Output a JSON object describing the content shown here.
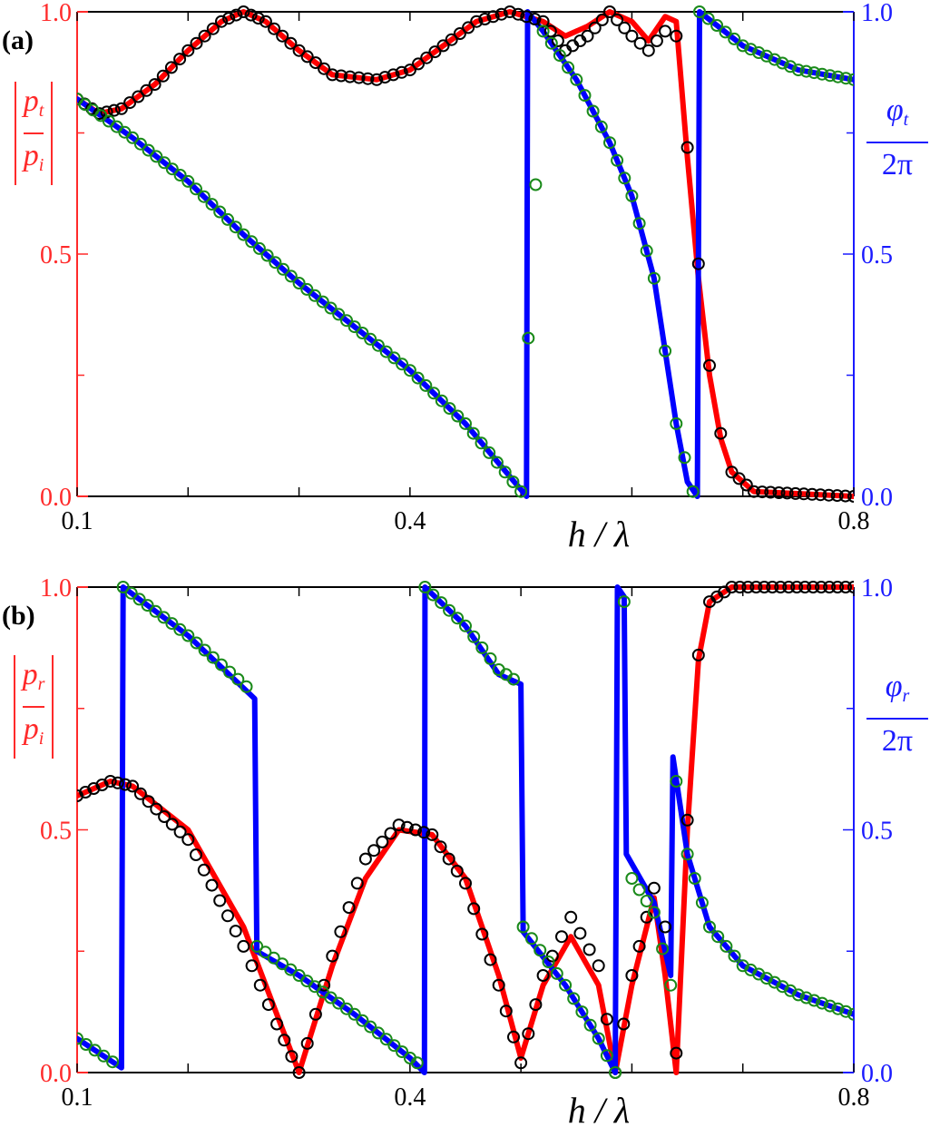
{
  "chart_data": [
    {
      "type": "line",
      "panel_label": "(a)",
      "xlabel": "h / λ",
      "ylabel_left": "|p_t / p_i|",
      "ylabel_right": "φ_t / 2π",
      "xlim": [
        0.1,
        0.8
      ],
      "ylim_left": [
        0.0,
        1.0
      ],
      "ylim_right": [
        0.0,
        1.0
      ],
      "x_ticks": [
        "0.1",
        "0.4",
        "0.8"
      ],
      "y_ticks_left": [
        "0.0",
        "0.5",
        "1.0"
      ],
      "y_ticks_right": [
        "0.0",
        "0.5",
        "1.0"
      ],
      "grid": false,
      "series": [
        {
          "name": "|p_t/p_i| (theory, red line)",
          "axis": "left",
          "color": "#ff0000",
          "style": "line",
          "x": [
            0.1,
            0.12,
            0.14,
            0.17,
            0.2,
            0.23,
            0.25,
            0.27,
            0.3,
            0.33,
            0.37,
            0.4,
            0.43,
            0.46,
            0.49,
            0.52,
            0.54,
            0.56,
            0.58,
            0.6,
            0.615,
            0.63,
            0.64,
            0.65,
            0.66,
            0.67,
            0.68,
            0.69,
            0.71,
            0.8
          ],
          "y": [
            0.82,
            0.79,
            0.8,
            0.85,
            0.92,
            0.98,
            1.0,
            0.98,
            0.92,
            0.87,
            0.86,
            0.88,
            0.93,
            0.98,
            1.0,
            0.98,
            0.95,
            0.97,
            1.0,
            0.98,
            0.94,
            0.99,
            0.98,
            0.7,
            0.45,
            0.25,
            0.12,
            0.05,
            0.01,
            0.0
          ]
        },
        {
          "name": "|p_t/p_i| (simulation, black circles)",
          "axis": "left",
          "color": "#000000",
          "style": "open-circle",
          "x": [
            0.1,
            0.12,
            0.14,
            0.17,
            0.2,
            0.23,
            0.25,
            0.27,
            0.3,
            0.33,
            0.37,
            0.4,
            0.43,
            0.46,
            0.49,
            0.52,
            0.54,
            0.56,
            0.58,
            0.6,
            0.615,
            0.63,
            0.64,
            0.65,
            0.66,
            0.67,
            0.68,
            0.69,
            0.71,
            0.8
          ],
          "y": [
            0.82,
            0.79,
            0.8,
            0.85,
            0.92,
            0.98,
            1.0,
            0.98,
            0.92,
            0.87,
            0.86,
            0.88,
            0.93,
            0.98,
            1.0,
            0.98,
            0.92,
            0.95,
            1.0,
            0.95,
            0.92,
            0.96,
            0.95,
            0.72,
            0.48,
            0.27,
            0.13,
            0.05,
            0.01,
            0.0
          ]
        },
        {
          "name": "φ_t/2π (theory, blue line)",
          "axis": "right",
          "color": "#0000ff",
          "style": "line",
          "x": [
            0.1,
            0.15,
            0.2,
            0.25,
            0.3,
            0.35,
            0.4,
            0.45,
            0.505,
            0.506,
            0.52,
            0.55,
            0.58,
            0.6,
            0.62,
            0.63,
            0.64,
            0.65,
            0.659,
            0.661,
            0.7,
            0.75,
            0.8
          ],
          "y": [
            0.82,
            0.74,
            0.65,
            0.54,
            0.44,
            0.35,
            0.26,
            0.15,
            0.0,
            1.0,
            0.96,
            0.86,
            0.73,
            0.62,
            0.45,
            0.3,
            0.15,
            0.03,
            0.0,
            1.0,
            0.93,
            0.88,
            0.86
          ]
        },
        {
          "name": "φ_t/2π (simulation, green circles)",
          "axis": "right",
          "color": "#1a8a1a",
          "style": "open-circle",
          "x": [
            0.1,
            0.15,
            0.2,
            0.25,
            0.3,
            0.35,
            0.4,
            0.45,
            0.5,
            0.52,
            0.55,
            0.58,
            0.6,
            0.62,
            0.63,
            0.64,
            0.655,
            0.661,
            0.7,
            0.75,
            0.8
          ],
          "y": [
            0.82,
            0.74,
            0.65,
            0.54,
            0.44,
            0.35,
            0.26,
            0.15,
            0.01,
            0.96,
            0.86,
            0.73,
            0.62,
            0.45,
            0.3,
            0.15,
            0.01,
            1.0,
            0.93,
            0.88,
            0.86
          ]
        }
      ]
    },
    {
      "type": "line",
      "panel_label": "(b)",
      "xlabel": "h / λ",
      "ylabel_left": "|p_r / p_i|",
      "ylabel_right": "φ_r / 2π",
      "xlim": [
        0.1,
        0.8
      ],
      "ylim_left": [
        0.0,
        1.0
      ],
      "ylim_right": [
        0.0,
        1.0
      ],
      "x_ticks": [
        "0.1",
        "0.4",
        "0.8"
      ],
      "y_ticks_left": [
        "0.0",
        "0.5",
        "1.0"
      ],
      "y_ticks_right": [
        "0.0",
        "0.5",
        "1.0"
      ],
      "grid": false,
      "series": [
        {
          "name": "|p_r/p_i| (theory, red line)",
          "axis": "left",
          "color": "#ff0000",
          "style": "line",
          "x": [
            0.1,
            0.13,
            0.15,
            0.2,
            0.25,
            0.28,
            0.3,
            0.33,
            0.36,
            0.39,
            0.42,
            0.45,
            0.48,
            0.5,
            0.52,
            0.545,
            0.57,
            0.585,
            0.6,
            0.62,
            0.63,
            0.64,
            0.65,
            0.66,
            0.67,
            0.69,
            0.8
          ],
          "y": [
            0.57,
            0.6,
            0.59,
            0.5,
            0.3,
            0.12,
            0.0,
            0.22,
            0.4,
            0.5,
            0.49,
            0.4,
            0.2,
            0.03,
            0.18,
            0.28,
            0.18,
            0.0,
            0.18,
            0.36,
            0.2,
            0.0,
            0.5,
            0.85,
            0.97,
            1.0,
            1.0
          ]
        },
        {
          "name": "|p_r/p_i| (simulation, black circles)",
          "axis": "left",
          "color": "#000000",
          "style": "open-circle",
          "x": [
            0.1,
            0.13,
            0.15,
            0.2,
            0.25,
            0.28,
            0.3,
            0.33,
            0.36,
            0.39,
            0.42,
            0.45,
            0.48,
            0.5,
            0.52,
            0.545,
            0.57,
            0.585,
            0.6,
            0.62,
            0.63,
            0.64,
            0.65,
            0.66,
            0.67,
            0.69,
            0.8
          ],
          "y": [
            0.57,
            0.6,
            0.59,
            0.48,
            0.26,
            0.1,
            0.0,
            0.24,
            0.44,
            0.51,
            0.49,
            0.39,
            0.18,
            0.02,
            0.2,
            0.32,
            0.22,
            0.0,
            0.2,
            0.38,
            0.3,
            0.04,
            0.52,
            0.86,
            0.97,
            1.0,
            1.0
          ]
        },
        {
          "name": "φ_r/2π (theory, blue line)",
          "axis": "right",
          "color": "#0000ff",
          "style": "line",
          "x": [
            0.1,
            0.14,
            0.1415,
            0.2,
            0.26,
            0.262,
            0.3,
            0.35,
            0.4,
            0.413,
            0.4135,
            0.45,
            0.48,
            0.5,
            0.502,
            0.54,
            0.57,
            0.585,
            0.587,
            0.593,
            0.595,
            0.62,
            0.635,
            0.637,
            0.65,
            0.67,
            0.7,
            0.75,
            0.8
          ],
          "y": [
            0.07,
            0.01,
            1.0,
            0.9,
            0.77,
            0.25,
            0.2,
            0.12,
            0.03,
            0.0,
            1.0,
            0.92,
            0.82,
            0.8,
            0.29,
            0.18,
            0.07,
            0.0,
            1.0,
            0.98,
            0.45,
            0.35,
            0.2,
            0.65,
            0.45,
            0.3,
            0.22,
            0.16,
            0.12
          ]
        },
        {
          "name": "φ_r/2π (simulation, green circles)",
          "axis": "right",
          "color": "#1a8a1a",
          "style": "open-circle",
          "x": [
            0.1,
            0.14,
            0.1415,
            0.2,
            0.26,
            0.262,
            0.3,
            0.35,
            0.4,
            0.413,
            0.4135,
            0.45,
            0.48,
            0.5,
            0.502,
            0.54,
            0.57,
            0.585,
            0.593,
            0.6,
            0.62,
            0.635,
            0.64,
            0.65,
            0.67,
            0.7,
            0.75,
            0.8
          ],
          "y": [
            0.07,
            0.01,
            1.0,
            0.9,
            0.78,
            0.26,
            0.2,
            0.12,
            0.03,
            0.01,
            1.0,
            0.92,
            0.83,
            0.8,
            0.3,
            0.18,
            0.07,
            0.0,
            0.97,
            0.4,
            0.33,
            0.18,
            0.6,
            0.45,
            0.3,
            0.22,
            0.16,
            0.12
          ]
        }
      ]
    }
  ],
  "figure": {
    "panels": [
      {
        "label": "(a)",
        "left_num": "p",
        "left_num_sub": "t",
        "left_den": "p",
        "left_den_sub": "i",
        "right_num": "φ",
        "right_num_sub": "t",
        "right_den": "2π",
        "xlabel": "h / λ",
        "x_tick_labels": [
          "0.1",
          "0.4",
          "0.8"
        ],
        "left_tick_labels": [
          "0.0",
          "0.5",
          "1.0"
        ],
        "right_tick_labels": [
          "0.0",
          "0.5",
          "1.0"
        ]
      },
      {
        "label": "(b)",
        "left_num": "p",
        "left_num_sub": "r",
        "left_den": "p",
        "left_den_sub": "i",
        "right_num": "φ",
        "right_num_sub": "r",
        "right_den": "2π",
        "xlabel": "h / λ",
        "x_tick_labels": [
          "0.1",
          "0.4",
          "0.8"
        ],
        "left_tick_labels": [
          "0.0",
          "0.5",
          "1.0"
        ],
        "right_tick_labels": [
          "0.0",
          "0.5",
          "1.0"
        ]
      }
    ],
    "colors": {
      "left_axis": "#ff2a2a",
      "right_axis": "#1a1aff",
      "frame": "#000000",
      "theory_magnitude": "#ff0000",
      "theory_phase": "#0000ff",
      "sim_magnitude": "#000000",
      "sim_phase": "#1a8a1a"
    }
  }
}
